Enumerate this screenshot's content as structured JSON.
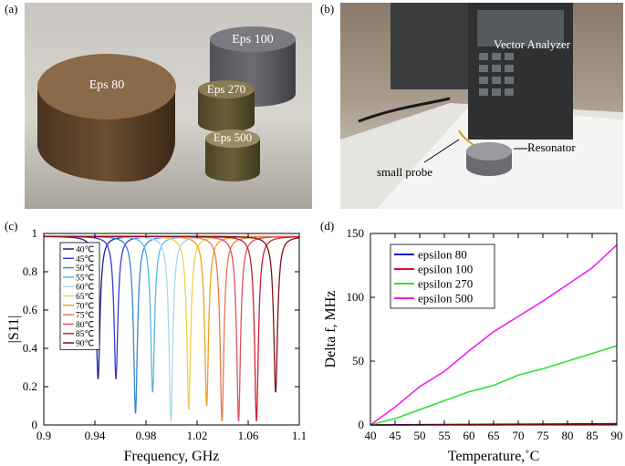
{
  "panels": {
    "a": {
      "label": "(a)",
      "cylinders": [
        "Eps 80",
        "Eps 100",
        "Eps 270",
        "Eps 500"
      ]
    },
    "b": {
      "label": "(b)",
      "annotations": [
        "Vector Analyzer",
        "Resonator",
        "small probe"
      ]
    },
    "c": {
      "label": "(c)"
    },
    "d": {
      "label": "(d)"
    }
  },
  "chart_data": [
    {
      "panel": "c",
      "type": "line",
      "xlabel": "Frequency, GHz",
      "ylabel": "|S11|",
      "xlim": [
        0.9,
        1.1
      ],
      "ylim": [
        0,
        1.0
      ],
      "xticks": [
        "0.9",
        "0.94",
        "0.98",
        "1.02",
        "1.06",
        "1.1"
      ],
      "yticks": [
        "0",
        "0.2",
        "0.4",
        "0.6",
        "0.8",
        "1"
      ],
      "legend_position": "top-left",
      "series": [
        {
          "name": "40℃",
          "color": "#1f1fa0",
          "f0": 0.9425,
          "min": 0.24
        },
        {
          "name": "45℃",
          "color": "#3a3ad0",
          "f0": 0.9565,
          "min": 0.24
        },
        {
          "name": "50℃",
          "color": "#3a86d6",
          "f0": 0.9718,
          "min": 0.06
        },
        {
          "name": "55℃",
          "color": "#58b8e0",
          "f0": 0.9852,
          "min": 0.17
        },
        {
          "name": "60℃",
          "color": "#a8d8f0",
          "f0": 0.9995,
          "min": 0.02
        },
        {
          "name": "65℃",
          "color": "#f0d050",
          "f0": 1.0135,
          "min": 0.08
        },
        {
          "name": "70℃",
          "color": "#f0a020",
          "f0": 1.0275,
          "min": 0.1
        },
        {
          "name": "75℃",
          "color": "#e87850",
          "f0": 1.0395,
          "min": 0.02
        },
        {
          "name": "80℃",
          "color": "#e05060",
          "f0": 1.0525,
          "min": 0.02
        },
        {
          "name": "85℃",
          "color": "#d02030",
          "f0": 1.0665,
          "min": 0.02
        },
        {
          "name": "90℃",
          "color": "#801018",
          "f0": 1.0815,
          "min": 0.17
        }
      ],
      "baseline": 0.985
    },
    {
      "panel": "d",
      "type": "line",
      "xlabel": "Temperature,˚C",
      "ylabel": "Delta f, MHz",
      "xlim": [
        40,
        90
      ],
      "ylim": [
        0,
        150
      ],
      "xticks": [
        "40",
        "45",
        "50",
        "55",
        "60",
        "65",
        "70",
        "75",
        "80",
        "85",
        "90"
      ],
      "yticks": [
        "0",
        "50",
        "100",
        "150"
      ],
      "legend_position": "top-left",
      "x": [
        40,
        45,
        50,
        55,
        60,
        65,
        70,
        75,
        80,
        85,
        90
      ],
      "series": [
        {
          "name": "epsilon 80",
          "color": "#1010c0",
          "values": [
            0,
            0.1,
            0.2,
            0.3,
            0.4,
            0.5,
            0.6,
            0.7,
            0.8,
            0.9,
            1.0
          ]
        },
        {
          "name": "epsilon 100",
          "color": "#e01020",
          "values": [
            0,
            0,
            0,
            0.1,
            0.1,
            0.1,
            0.2,
            0.2,
            0.2,
            0.3,
            0.3
          ]
        },
        {
          "name": "epsilon 270",
          "color": "#30e030",
          "values": [
            0,
            5,
            12,
            19,
            26,
            31,
            39,
            44,
            50,
            56,
            62
          ]
        },
        {
          "name": "epsilon 500",
          "color": "#f020f0",
          "values": [
            0,
            14,
            30,
            42,
            58,
            73,
            85,
            97,
            110,
            123,
            141
          ]
        }
      ]
    }
  ]
}
